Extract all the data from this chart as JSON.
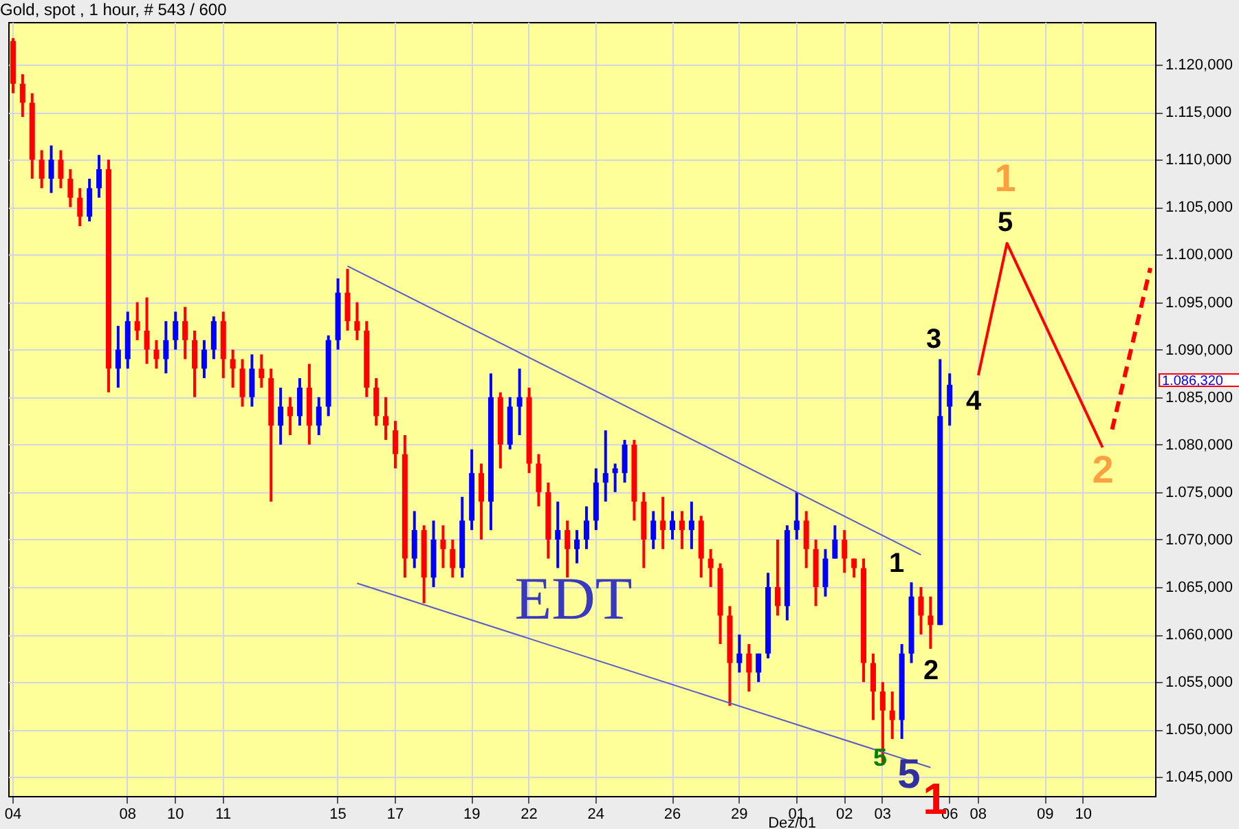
{
  "chart_data": {
    "type": "candlestick",
    "title": "Gold, spot , 1 hour, # 543 / 600",
    "categories": [
      "04",
      null,
      null,
      null,
      null,
      null,
      null,
      null,
      null,
      null,
      null,
      null,
      "08",
      null,
      null,
      null,
      null,
      "10",
      null,
      null,
      null,
      null,
      "11",
      null,
      null,
      null,
      null,
      null,
      null,
      null,
      null,
      null,
      null,
      null,
      "15",
      null,
      null,
      null,
      null,
      null,
      "17",
      null,
      null,
      null,
      null,
      null,
      null,
      null,
      "19",
      null,
      null,
      null,
      null,
      null,
      "22",
      null,
      null,
      null,
      null,
      null,
      null,
      "24",
      null,
      null,
      null,
      null,
      null,
      null,
      null,
      "26",
      null,
      null,
      null,
      null,
      null,
      null,
      "29",
      null,
      null,
      null,
      null,
      null,
      "01",
      null,
      null,
      null,
      null,
      "02",
      null,
      null,
      null,
      "03",
      null,
      null,
      null,
      null,
      null,
      null,
      "06",
      null,
      null,
      "08",
      null,
      null,
      null,
      null,
      null,
      null,
      "09",
      null,
      null,
      null,
      "10",
      null,
      null,
      null,
      null,
      null,
      null,
      null
    ],
    "ohlc": [
      [
        1122.5,
        1122.8,
        1117,
        1118
      ],
      [
        1118,
        1119,
        1114.5,
        1116
      ],
      [
        1116,
        1117,
        1108,
        1110
      ],
      [
        1110,
        1111,
        1107,
        1108
      ],
      [
        1108,
        1111.5,
        1106.5,
        1110
      ],
      [
        1110,
        1111,
        1107,
        1108
      ],
      [
        1108,
        1109,
        1105,
        1106
      ],
      [
        1106,
        1107,
        1103,
        1104
      ],
      [
        1104,
        1108,
        1103.5,
        1107
      ],
      [
        1107,
        1110.5,
        1106,
        1109
      ],
      [
        1109,
        1110,
        1085.5,
        1088
      ],
      [
        1088,
        1092.5,
        1086,
        1090
      ],
      [
        1089,
        1094,
        1088,
        1093
      ],
      [
        1093,
        1095,
        1091,
        1092
      ],
      [
        1092,
        1095.5,
        1088.5,
        1090
      ],
      [
        1090,
        1091,
        1088,
        1089
      ],
      [
        1089,
        1093,
        1087.5,
        1091
      ],
      [
        1091,
        1094,
        1090,
        1093
      ],
      [
        1093,
        1094.5,
        1089,
        1091
      ],
      [
        1091,
        1092,
        1085,
        1088
      ],
      [
        1088,
        1091,
        1087,
        1090
      ],
      [
        1090,
        1093.5,
        1089,
        1093
      ],
      [
        1093,
        1094,
        1087,
        1089
      ],
      [
        1089,
        1090,
        1086,
        1088
      ],
      [
        1088,
        1089,
        1084,
        1085
      ],
      [
        1085,
        1089.5,
        1084,
        1088
      ],
      [
        1088,
        1089.5,
        1086,
        1087
      ],
      [
        1087,
        1088,
        1074,
        1082
      ],
      [
        1082,
        1086,
        1080,
        1084
      ],
      [
        1084,
        1085,
        1081,
        1083
      ],
      [
        1083,
        1087,
        1082,
        1086
      ],
      [
        1086,
        1088.5,
        1080,
        1082
      ],
      [
        1082,
        1085,
        1081,
        1084
      ],
      [
        1084,
        1091.5,
        1083,
        1091
      ],
      [
        1091,
        1097.5,
        1090,
        1096
      ],
      [
        1096,
        1098.5,
        1092,
        1093
      ],
      [
        1093,
        1095,
        1091,
        1092
      ],
      [
        1092,
        1093,
        1085,
        1086
      ],
      [
        1086,
        1087,
        1082,
        1083
      ],
      [
        1083,
        1085,
        1080.5,
        1082
      ],
      [
        1081.5,
        1082.5,
        1077.5,
        1079
      ],
      [
        1079,
        1081,
        1066,
        1068
      ],
      [
        1068,
        1073,
        1067,
        1071
      ],
      [
        1071,
        1071.5,
        1063.3,
        1066
      ],
      [
        1066,
        1072,
        1065,
        1070
      ],
      [
        1070,
        1071.5,
        1067,
        1069
      ],
      [
        1069,
        1070,
        1066,
        1067
      ],
      [
        1067,
        1074.5,
        1066,
        1072
      ],
      [
        1072,
        1079.5,
        1071,
        1077
      ],
      [
        1077,
        1078,
        1070,
        1074
      ],
      [
        1074,
        1087.5,
        1071,
        1085
      ],
      [
        1085,
        1085.5,
        1077.5,
        1080
      ],
      [
        1080,
        1085,
        1079.5,
        1084
      ],
      [
        1084,
        1088,
        1081,
        1085
      ],
      [
        1085,
        1086,
        1077,
        1078
      ],
      [
        1078,
        1079,
        1073.5,
        1075
      ],
      [
        1075,
        1076,
        1068,
        1070
      ],
      [
        1070,
        1074,
        1067,
        1071
      ],
      [
        1071,
        1072,
        1066,
        1069
      ],
      [
        1069,
        1071,
        1067.5,
        1070
      ],
      [
        1070,
        1073.5,
        1069,
        1072
      ],
      [
        1072,
        1077.5,
        1071,
        1076
      ],
      [
        1076,
        1081.5,
        1074,
        1077
      ],
      [
        1077,
        1078,
        1075,
        1077.5
      ],
      [
        1077,
        1080.5,
        1076,
        1080
      ],
      [
        1080,
        1080.5,
        1072,
        1074
      ],
      [
        1074,
        1075,
        1067,
        1070
      ],
      [
        1070,
        1073,
        1069,
        1072
      ],
      [
        1072,
        1074.5,
        1069,
        1071
      ],
      [
        1071,
        1073,
        1070,
        1072
      ],
      [
        1072,
        1073,
        1069,
        1071
      ],
      [
        1071,
        1074,
        1069,
        1072
      ],
      [
        1072,
        1072.5,
        1066,
        1068
      ],
      [
        1068,
        1069,
        1065,
        1067
      ],
      [
        1067,
        1067.5,
        1059,
        1062
      ],
      [
        1062,
        1063,
        1052.5,
        1057
      ],
      [
        1057,
        1060,
        1056,
        1058
      ],
      [
        1058,
        1059,
        1054,
        1056
      ],
      [
        1056,
        1058,
        1055,
        1058
      ],
      [
        1058,
        1066.5,
        1057.5,
        1065
      ],
      [
        1065,
        1070,
        1062,
        1063
      ],
      [
        1063,
        1071.5,
        1061.5,
        1071
      ],
      [
        1071,
        1075,
        1070,
        1072
      ],
      [
        1072,
        1073,
        1067,
        1069
      ],
      [
        1069,
        1070,
        1063,
        1065
      ],
      [
        1065,
        1069,
        1064,
        1068
      ],
      [
        1068,
        1071.5,
        1068,
        1070
      ],
      [
        1070,
        1071,
        1066.5,
        1068
      ],
      [
        1068,
        1068,
        1066,
        1067
      ],
      [
        1067,
        1068,
        1055,
        1057
      ],
      [
        1057,
        1058,
        1051,
        1054
      ],
      [
        1054,
        1055,
        1046.5,
        1052
      ],
      [
        1052,
        1054,
        1049,
        1051
      ],
      [
        1051,
        1059,
        1049,
        1058
      ],
      [
        1058,
        1065.5,
        1057,
        1064
      ],
      [
        1064,
        1065,
        1060,
        1062
      ],
      [
        1062,
        1064,
        1058.5,
        1061
      ],
      [
        1061,
        1089,
        1061,
        1083
      ],
      [
        1084,
        1087.5,
        1082,
        1086.3
      ],
      null,
      null,
      null,
      null,
      null,
      null,
      null,
      null,
      null,
      null,
      null,
      null,
      null,
      null,
      null,
      null,
      null,
      null,
      null,
      null,
      null
    ],
    "colors": [
      "#ff0000",
      "#ff0000",
      "#ff0000",
      "#ff0000",
      "#0000ff",
      "#ff0000",
      "#ff0000",
      "#ff0000",
      "#0000ff",
      "#0000ff",
      "#ff0000",
      "#0000ff",
      "#0000ff",
      "#ff0000",
      "#ff0000",
      "#ff0000",
      "#0000ff",
      "#0000ff",
      "#ff0000",
      "#ff0000",
      "#0000ff",
      "#0000ff",
      "#ff0000",
      "#ff0000",
      "#ff0000",
      "#0000ff",
      "#ff0000",
      "#ff0000",
      "#0000ff",
      "#ff0000",
      "#0000ff",
      "#ff0000",
      "#0000ff",
      "#0000ff",
      "#0000ff",
      "#ff0000",
      "#ff0000",
      "#ff0000",
      "#ff0000",
      "#ff0000",
      "#ff0000",
      "#ff0000",
      "#0000ff",
      "#ff0000",
      "#0000ff",
      "#ff0000",
      "#ff0000",
      "#0000ff",
      "#0000ff",
      "#ff0000",
      "#0000ff",
      "#ff0000",
      "#0000ff",
      "#0000ff",
      "#ff0000",
      "#ff0000",
      "#ff0000",
      "#0000ff",
      "#ff0000",
      "#0000ff",
      "#0000ff",
      "#0000ff",
      "#0000ff",
      "#0000ff",
      "#0000ff",
      "#ff0000",
      "#ff0000",
      "#0000ff",
      "#ff0000",
      "#0000ff",
      "#ff0000",
      "#0000ff",
      "#ff0000",
      "#ff0000",
      "#ff0000",
      "#ff0000",
      "#0000ff",
      "#ff0000",
      "#0000ff",
      "#0000ff",
      "#ff0000",
      "#0000ff",
      "#0000ff",
      "#ff0000",
      "#ff0000",
      "#0000ff",
      "#0000ff",
      "#ff0000",
      "#ff0000",
      "#ff0000",
      "#ff0000",
      "#ff0000",
      "#ff0000",
      "#0000ff",
      "#0000ff",
      "#ff0000",
      "#ff0000",
      "#0000ff",
      "#0000ff",
      null,
      null,
      null,
      null,
      null,
      null,
      null,
      null,
      null,
      null,
      null,
      null,
      null,
      null,
      null,
      null,
      null,
      null,
      null,
      null,
      null
    ],
    "series": [
      {
        "type": "line",
        "color": "#5a5ac8",
        "values": [
          null,
          null,
          null,
          null,
          null,
          null,
          null,
          null,
          null,
          null,
          null,
          null,
          null,
          null,
          null,
          null,
          null,
          null,
          null,
          null,
          null,
          null,
          null,
          null,
          null,
          null,
          null,
          null,
          null,
          null,
          null,
          null,
          null,
          null,
          null,
          1098.8,
          null,
          null,
          null,
          null,
          null,
          null,
          null,
          null,
          null,
          null,
          null,
          null,
          null,
          null,
          null,
          null,
          null,
          null,
          null,
          null,
          null,
          null,
          null,
          null,
          null,
          null,
          null,
          null,
          null,
          null,
          null,
          null,
          null,
          null,
          null,
          null,
          null,
          null,
          null,
          null,
          null,
          null,
          null,
          null,
          null,
          null,
          null,
          null,
          null,
          null,
          null,
          null,
          null,
          null,
          null,
          null,
          null,
          null,
          null,
          1068.4,
          null,
          null,
          null,
          null,
          null,
          null,
          null,
          null,
          null,
          null,
          null,
          null,
          null,
          null,
          null,
          null,
          null,
          null,
          null,
          null,
          null,
          null,
          null,
          null
        ]
      },
      {
        "type": "line",
        "color": "#5a5ac8",
        "values": [
          null,
          null,
          null,
          null,
          null,
          null,
          null,
          null,
          null,
          null,
          null,
          null,
          null,
          null,
          null,
          null,
          null,
          null,
          null,
          null,
          null,
          null,
          null,
          null,
          null,
          null,
          null,
          null,
          null,
          null,
          null,
          null,
          null,
          null,
          null,
          null,
          1065.4,
          null,
          null,
          null,
          null,
          null,
          null,
          null,
          null,
          null,
          null,
          null,
          null,
          null,
          null,
          null,
          null,
          null,
          null,
          null,
          null,
          null,
          null,
          null,
          null,
          null,
          null,
          null,
          null,
          null,
          null,
          null,
          null,
          null,
          null,
          null,
          null,
          null,
          null,
          null,
          null,
          null,
          null,
          null,
          null,
          null,
          null,
          null,
          null,
          null,
          null,
          null,
          null,
          null,
          null,
          null,
          null,
          null,
          null,
          null,
          1046,
          null,
          null,
          null,
          null,
          null,
          null,
          null,
          null,
          null,
          null,
          null,
          null,
          null,
          null,
          null,
          null,
          null,
          null,
          null,
          null,
          null,
          null,
          null
        ]
      },
      {
        "type": "line",
        "color": "#ff0000",
        "values": [
          null,
          null,
          null,
          null,
          null,
          null,
          null,
          null,
          null,
          null,
          null,
          null,
          null,
          null,
          null,
          null,
          null,
          null,
          null,
          null,
          null,
          null,
          null,
          null,
          null,
          null,
          null,
          null,
          null,
          null,
          null,
          null,
          null,
          null,
          null,
          null,
          null,
          null,
          null,
          null,
          null,
          null,
          null,
          null,
          null,
          null,
          null,
          null,
          null,
          null,
          null,
          null,
          null,
          null,
          null,
          null,
          null,
          null,
          null,
          null,
          null,
          null,
          null,
          null,
          null,
          null,
          null,
          null,
          null,
          null,
          null,
          null,
          null,
          null,
          null,
          null,
          null,
          null,
          null,
          null,
          null,
          null,
          null,
          null,
          null,
          null,
          null,
          null,
          null,
          null,
          null,
          null,
          null,
          null,
          null,
          null,
          null,
          null,
          null,
          null,
          null,
          1087.3,
          null,
          null,
          1101.2,
          null,
          null,
          null,
          null,
          null,
          null,
          null,
          null,
          null,
          1079.7,
          null,
          null,
          null,
          null,
          null
        ]
      },
      {
        "type": "line",
        "color": "#ff0000",
        "line_style": "dashed",
        "values": [
          null,
          null,
          null,
          null,
          null,
          null,
          null,
          null,
          null,
          null,
          null,
          null,
          null,
          null,
          null,
          null,
          null,
          null,
          null,
          null,
          null,
          null,
          null,
          null,
          null,
          null,
          null,
          null,
          null,
          null,
          null,
          null,
          null,
          null,
          null,
          null,
          null,
          null,
          null,
          null,
          null,
          null,
          null,
          null,
          null,
          null,
          null,
          null,
          null,
          null,
          null,
          null,
          null,
          null,
          null,
          null,
          null,
          null,
          null,
          null,
          null,
          null,
          null,
          null,
          null,
          null,
          null,
          null,
          null,
          null,
          null,
          null,
          null,
          null,
          null,
          null,
          null,
          null,
          null,
          null,
          null,
          null,
          null,
          null,
          null,
          null,
          null,
          null,
          null,
          null,
          null,
          null,
          null,
          null,
          null,
          null,
          null,
          null,
          null,
          null,
          null,
          null,
          null,
          null,
          null,
          null,
          null,
          null,
          null,
          null,
          null,
          null,
          null,
          null,
          null,
          1081.6,
          null,
          null,
          null,
          1098.6
        ]
      }
    ],
    "ylim": [
      1043,
      1124.5
    ],
    "yticks": [
      {
        "value": 1045,
        "label": "1.045,000"
      },
      {
        "value": 1050,
        "label": "1.050,000"
      },
      {
        "value": 1055,
        "label": "1.055,000"
      },
      {
        "value": 1060,
        "label": "1.060,000"
      },
      {
        "value": 1065,
        "label": "1.065,000"
      },
      {
        "value": 1070,
        "label": "1.070,000"
      },
      {
        "value": 1075,
        "label": "1.075,000"
      },
      {
        "value": 1080,
        "label": "1.080,000"
      },
      {
        "value": 1085,
        "label": "1.085,000"
      },
      {
        "value": 1090,
        "label": "1.090,000"
      },
      {
        "value": 1095,
        "label": "1.095,000"
      },
      {
        "value": 1100,
        "label": "1.100,000"
      },
      {
        "value": 1105,
        "label": "1.105,000"
      },
      {
        "value": 1110,
        "label": "1.110,000"
      },
      {
        "value": 1115,
        "label": "1.115,000"
      },
      {
        "value": 1120,
        "label": "1.120,000"
      }
    ],
    "grid": true,
    "annotations": [
      "EDT",
      "1",
      "5",
      "3",
      "4",
      "2",
      "1",
      "2",
      "5",
      "5",
      "1",
      "Dez/01",
      "1.086,320"
    ]
  }
}
